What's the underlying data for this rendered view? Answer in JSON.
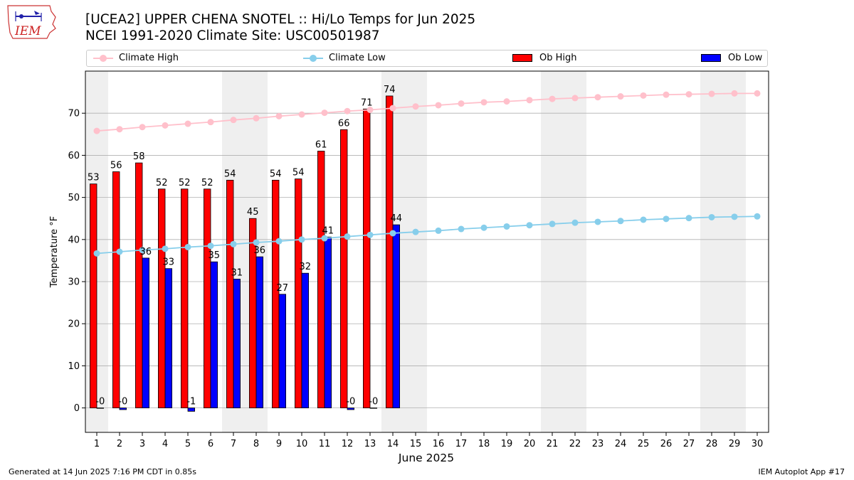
{
  "header": {
    "title_line1": "[UCEA2] UPPER CHENA SNOTEL :: Hi/Lo Temps for Jun 2025",
    "title_line2": "NCEI 1991-2020 Climate Site: USC00501987"
  },
  "footer": {
    "generated": "Generated at 14 Jun 2025 7:16 PM CDT in 0.85s",
    "app": "IEM Autoplot App #17"
  },
  "logo": {
    "text": "IEM",
    "icon": "iem-iowa-logo-icon"
  },
  "chart_data": {
    "type": "bar",
    "xlabel": "June 2025",
    "ylabel": "Temperature °F",
    "ylim": [
      -5.8,
      80
    ],
    "xlim": [
      0.5,
      30.5
    ],
    "yticks": [
      0,
      10,
      20,
      30,
      40,
      50,
      60,
      70
    ],
    "xticks": [
      1,
      2,
      3,
      4,
      5,
      6,
      7,
      8,
      9,
      10,
      11,
      12,
      13,
      14,
      15,
      16,
      17,
      18,
      19,
      20,
      21,
      22,
      23,
      24,
      25,
      26,
      27,
      28,
      29,
      30
    ],
    "grid": "horizontal",
    "legend_position": "top",
    "weekend_shading": [
      [
        0.5,
        1.5
      ],
      [
        6.5,
        8.5
      ],
      [
        13.5,
        15.5
      ],
      [
        20.5,
        22.5
      ],
      [
        27.5,
        29.5
      ]
    ],
    "series": [
      {
        "name": "Climate High",
        "kind": "line",
        "color": "#ffc0cb",
        "x": [
          1,
          2,
          3,
          4,
          5,
          6,
          7,
          8,
          9,
          10,
          11,
          12,
          13,
          14,
          15,
          16,
          17,
          18,
          19,
          20,
          21,
          22,
          23,
          24,
          25,
          26,
          27,
          28,
          29,
          30
        ],
        "values": [
          65.8,
          66.2,
          66.7,
          67.1,
          67.5,
          67.9,
          68.4,
          68.8,
          69.3,
          69.7,
          70.1,
          70.5,
          70.8,
          71.2,
          71.6,
          71.9,
          72.3,
          72.6,
          72.8,
          73.1,
          73.4,
          73.6,
          73.8,
          74.0,
          74.2,
          74.4,
          74.5,
          74.6,
          74.7,
          74.7
        ]
      },
      {
        "name": "Climate Low",
        "kind": "line",
        "color": "#87ceeb",
        "x": [
          1,
          2,
          3,
          4,
          5,
          6,
          7,
          8,
          9,
          10,
          11,
          12,
          13,
          14,
          15,
          16,
          17,
          18,
          19,
          20,
          21,
          22,
          23,
          24,
          25,
          26,
          27,
          28,
          29,
          30
        ],
        "values": [
          36.7,
          37.1,
          37.5,
          37.8,
          38.2,
          38.5,
          38.9,
          39.3,
          39.6,
          40.0,
          40.3,
          40.7,
          41.1,
          41.5,
          41.8,
          42.1,
          42.5,
          42.8,
          43.1,
          43.4,
          43.7,
          44.0,
          44.2,
          44.4,
          44.7,
          44.9,
          45.1,
          45.3,
          45.4,
          45.5
        ]
      },
      {
        "name": "Ob High",
        "kind": "bar",
        "color": "#ff0000",
        "x": [
          1,
          2,
          3,
          4,
          5,
          6,
          7,
          8,
          9,
          10,
          11,
          12,
          13,
          14
        ],
        "values": [
          53.2,
          56.1,
          58.2,
          52.0,
          52.0,
          52.0,
          54.1,
          45.0,
          54.1,
          54.4,
          61.0,
          66.1,
          71.0,
          74.1
        ],
        "labels": [
          "53",
          "56",
          "58",
          "52",
          "52",
          "52",
          "54",
          "45",
          "54",
          "54",
          "61",
          "66",
          "71",
          "74"
        ]
      },
      {
        "name": "Ob Low",
        "kind": "bar",
        "color": "#0000ff",
        "x": [
          1,
          2,
          3,
          4,
          5,
          6,
          7,
          8,
          9,
          10,
          11,
          12,
          13,
          14
        ],
        "values": [
          0.0,
          -0.4,
          35.6,
          33.1,
          -0.8,
          34.7,
          30.6,
          35.9,
          27.0,
          32.0,
          40.6,
          -0.4,
          0.0,
          43.5
        ],
        "labels": [
          "-0",
          "-0",
          "36",
          "33",
          "-1",
          "35",
          "31",
          "36",
          "27",
          "32",
          "41",
          "-0",
          "-0",
          "44"
        ]
      }
    ]
  }
}
